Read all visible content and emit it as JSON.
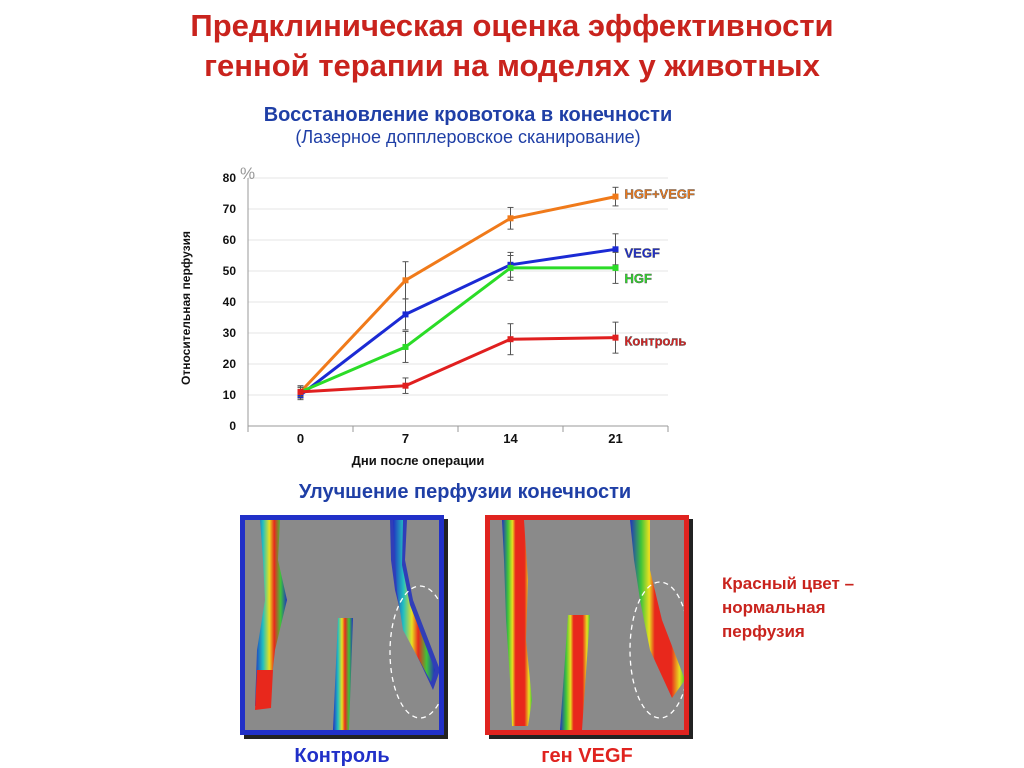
{
  "title": {
    "line1": "Предклиническая оценка  эффективности",
    "line2": "генной терапии на моделях у животных"
  },
  "chart_data": {
    "type": "line",
    "title": "Восстановление кровотока в конечности",
    "subtitle": "(Лазерное допплеровское  сканирование)",
    "unit": "%",
    "ylabel": "Относительная перфузия",
    "xlabel": "Дни после операции",
    "x": [
      0,
      7,
      14,
      21
    ],
    "x_tick_labels": [
      "0",
      "7",
      "14",
      "21"
    ],
    "ylim": [
      0,
      80
    ],
    "y_ticks": [
      0,
      10,
      20,
      30,
      40,
      50,
      60,
      70,
      80
    ],
    "grid": "horizontal",
    "series": [
      {
        "name": "HGF+VEGF",
        "color": "#f07a1a",
        "values": [
          11,
          47,
          67,
          74
        ],
        "errors": [
          2,
          6,
          3.5,
          3
        ]
      },
      {
        "name": "VEGF",
        "color": "#1b2ad4",
        "values": [
          10,
          36,
          52,
          57
        ],
        "errors": [
          1.5,
          5,
          4,
          5
        ]
      },
      {
        "name": "HGF",
        "color": "#2bdc27",
        "values": [
          11,
          25.5,
          51,
          51
        ],
        "errors": [
          1.5,
          5,
          4,
          5
        ]
      },
      {
        "name": "Контроль",
        "color": "#e01f1f",
        "values": [
          11,
          13,
          28,
          28.5
        ],
        "errors": [
          1.5,
          2.5,
          5,
          5
        ]
      }
    ]
  },
  "images": {
    "title": "Улучшение перфузии конечности",
    "control_label": "Контроль",
    "vegf_label": "ген VEGF",
    "note": "Красный цвет – нормальная перфузия"
  }
}
